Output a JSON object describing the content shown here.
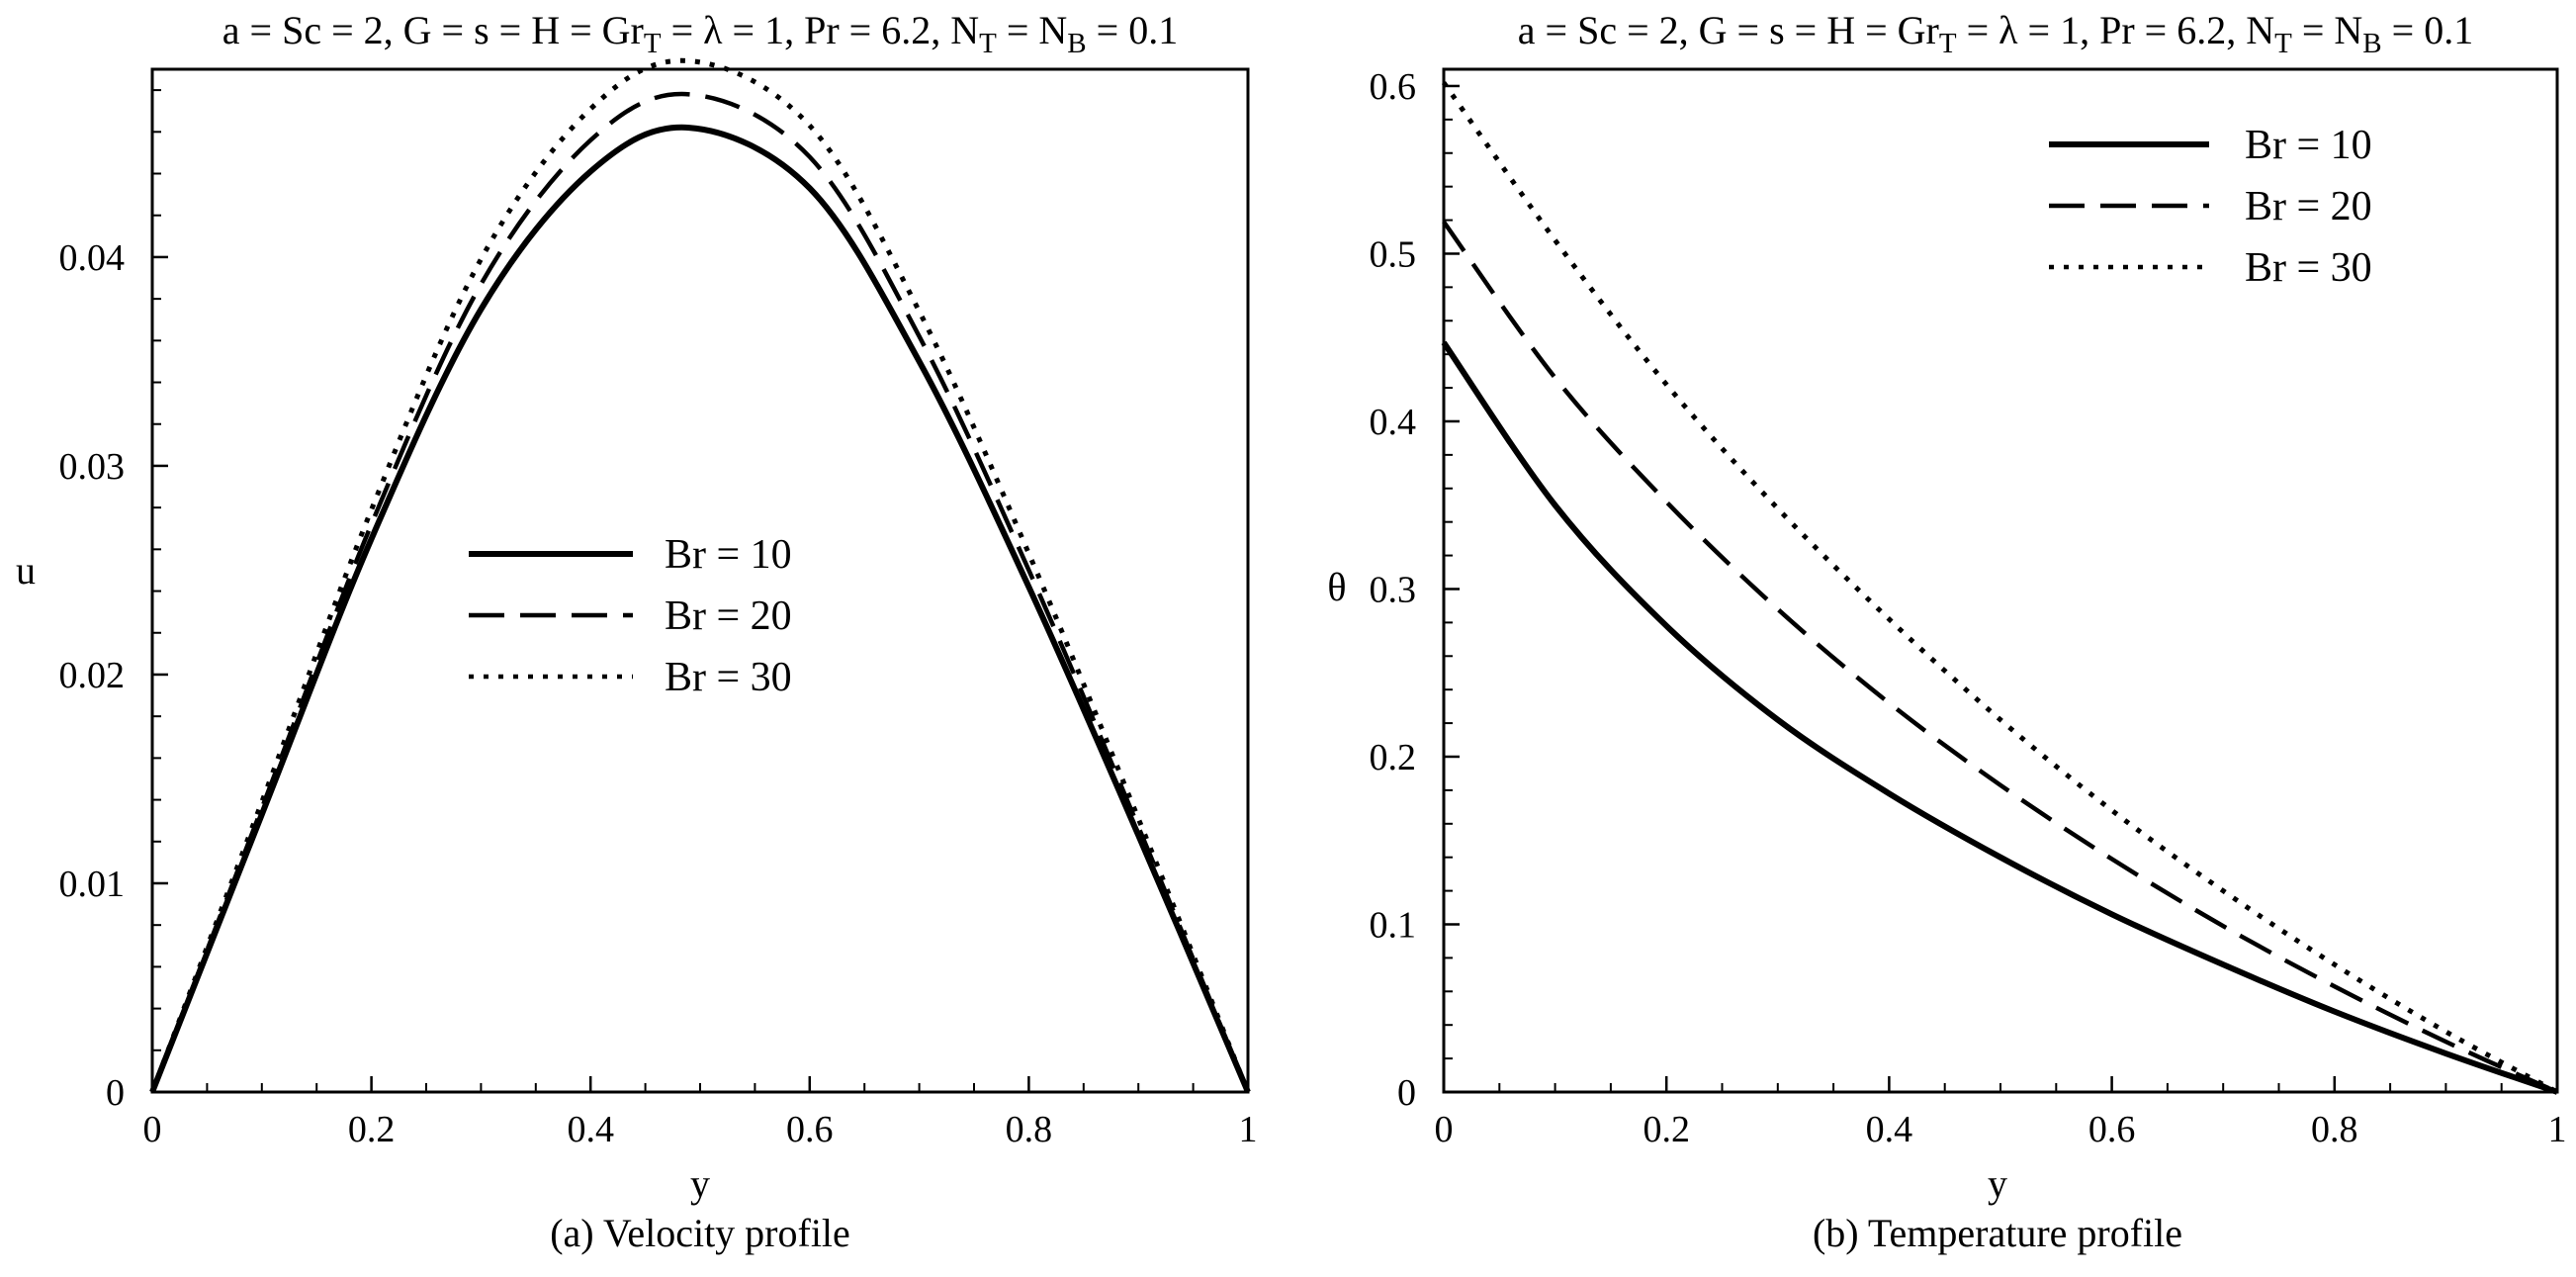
{
  "chart_data": [
    {
      "type": "line",
      "id": "velocity",
      "title": {
        "main": "a =  Sc = 2, G = s = H =  Gr",
        "sub1": "T",
        "mid": " = λ = 1, Pr = 6.2, N",
        "sub2": "T",
        "mid2": " = N",
        "sub3": "B",
        "end": " = 0.1"
      },
      "xlabel": "y",
      "ylabel": "u",
      "caption": "(a) Velocity profile",
      "xlim": [
        0,
        1
      ],
      "ylim": [
        0,
        0.049
      ],
      "xticks": [
        0,
        0.2,
        0.4,
        0.6,
        0.8,
        1
      ],
      "xtick_labels": [
        "0",
        "0.2",
        "0.4",
        "0.6",
        "0.8",
        "1"
      ],
      "yticks": [
        0,
        0.01,
        0.02,
        0.03,
        0.04
      ],
      "ytick_labels": [
        "0",
        "0.01",
        "0.02",
        "0.03",
        "0.04"
      ],
      "legend_position": "center-left",
      "series": [
        {
          "name": "Br = 10",
          "style": "solid",
          "x": [
            0,
            0.1,
            0.2,
            0.3,
            0.4,
            0.49,
            0.6,
            0.7,
            0.8,
            0.9,
            1
          ],
          "y": [
            0,
            0.0133,
            0.0265,
            0.0375,
            0.0441,
            0.0462,
            0.0433,
            0.035,
            0.0242,
            0.0123,
            0
          ]
        },
        {
          "name": "Br = 20",
          "style": "dashed",
          "x": [
            0,
            0.1,
            0.2,
            0.3,
            0.4,
            0.49,
            0.6,
            0.7,
            0.8,
            0.9,
            1
          ],
          "y": [
            0,
            0.0136,
            0.0272,
            0.0387,
            0.0456,
            0.0478,
            0.0448,
            0.0362,
            0.025,
            0.0127,
            0
          ]
        },
        {
          "name": "Br = 30",
          "style": "dotted",
          "x": [
            0,
            0.1,
            0.2,
            0.3,
            0.4,
            0.49,
            0.6,
            0.7,
            0.8,
            0.9,
            1
          ],
          "y": [
            0,
            0.0139,
            0.0279,
            0.0399,
            0.0471,
            0.0494,
            0.0463,
            0.0374,
            0.0258,
            0.0131,
            0
          ]
        }
      ]
    },
    {
      "type": "line",
      "id": "temperature",
      "title": {
        "main": "a =  Sc = 2, G = s = H =  Gr",
        "sub1": "T",
        "mid": " = λ = 1, Pr = 6.2, N",
        "sub2": "T",
        "mid2": " = N",
        "sub3": "B",
        "end": " = 0.1"
      },
      "xlabel": "y",
      "ylabel": "θ",
      "caption": "(b) Temperature profile",
      "xlim": [
        0,
        1
      ],
      "ylim": [
        0,
        0.61
      ],
      "xticks": [
        0,
        0.2,
        0.4,
        0.6,
        0.8,
        1
      ],
      "xtick_labels": [
        "0",
        "0.2",
        "0.4",
        "0.6",
        "0.8",
        "1"
      ],
      "yticks": [
        0,
        0.1,
        0.2,
        0.3,
        0.4,
        0.5,
        0.6
      ],
      "ytick_labels": [
        "0",
        "0.1",
        "0.2",
        "0.3",
        "0.4",
        "0.5",
        "0.6"
      ],
      "legend_position": "top-right",
      "series": [
        {
          "name": "Br = 10",
          "style": "solid",
          "x": [
            0,
            0.1,
            0.2,
            0.3,
            0.4,
            0.5,
            0.6,
            0.7,
            0.8,
            0.9,
            1
          ],
          "y": [
            0.447,
            0.35,
            0.278,
            0.222,
            0.178,
            0.14,
            0.106,
            0.076,
            0.048,
            0.023,
            0
          ]
        },
        {
          "name": "Br = 20",
          "style": "dashed",
          "x": [
            0,
            0.1,
            0.2,
            0.3,
            0.4,
            0.5,
            0.6,
            0.7,
            0.8,
            0.9,
            1
          ],
          "y": [
            0.519,
            0.426,
            0.352,
            0.288,
            0.232,
            0.183,
            0.139,
            0.099,
            0.063,
            0.03,
            0
          ]
        },
        {
          "name": "Br = 30",
          "style": "dotted",
          "x": [
            0,
            0.1,
            0.2,
            0.3,
            0.4,
            0.5,
            0.6,
            0.7,
            0.8,
            0.9,
            1
          ],
          "y": [
            0.602,
            0.508,
            0.422,
            0.348,
            0.282,
            0.222,
            0.168,
            0.12,
            0.076,
            0.036,
            0
          ]
        }
      ]
    }
  ]
}
